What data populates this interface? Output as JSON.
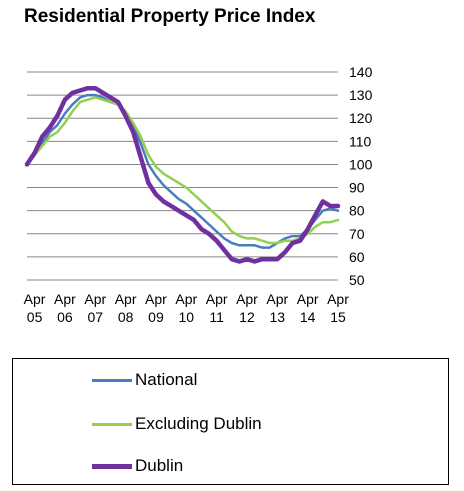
{
  "chart_data": {
    "type": "line",
    "title": "Residential Property Price Index",
    "xlabel": "",
    "ylabel": "",
    "x": [
      "2005-01",
      "2005-04",
      "2005-07",
      "2005-10",
      "2006-01",
      "2006-04",
      "2006-07",
      "2006-10",
      "2007-01",
      "2007-04",
      "2007-07",
      "2007-10",
      "2008-01",
      "2008-04",
      "2008-07",
      "2008-10",
      "2009-01",
      "2009-04",
      "2009-07",
      "2009-10",
      "2010-01",
      "2010-04",
      "2010-07",
      "2010-10",
      "2011-01",
      "2011-04",
      "2011-07",
      "2011-10",
      "2012-01",
      "2012-04",
      "2012-07",
      "2012-10",
      "2013-01",
      "2013-04",
      "2013-07",
      "2013-10",
      "2014-01",
      "2014-04",
      "2014-07",
      "2014-10",
      "2015-01",
      "2015-04"
    ],
    "x_tick_labels": [
      {
        "month": "Apr",
        "year": "05"
      },
      {
        "month": "Apr",
        "year": "06"
      },
      {
        "month": "Apr",
        "year": "07"
      },
      {
        "month": "Apr",
        "year": "08"
      },
      {
        "month": "Apr",
        "year": "09"
      },
      {
        "month": "Apr",
        "year": "10"
      },
      {
        "month": "Apr",
        "year": "11"
      },
      {
        "month": "Apr",
        "year": "12"
      },
      {
        "month": "Apr",
        "year": "13"
      },
      {
        "month": "Apr",
        "year": "14"
      },
      {
        "month": "Apr",
        "year": "15"
      }
    ],
    "y_ticks": [
      "50",
      "60",
      "70",
      "80",
      "90",
      "100",
      "110",
      "120",
      "130",
      "140"
    ],
    "ylim": [
      50,
      140
    ],
    "xlim": [
      "2005-01",
      "2015-04"
    ],
    "grid": "horizontal",
    "legend": "bottom",
    "series": [
      {
        "name": "National",
        "color": "#4a7ebb",
        "values": [
          100,
          104,
          109,
          114,
          117,
          122,
          126,
          129,
          130,
          130,
          129,
          127,
          126,
          123,
          117,
          109,
          100,
          95,
          91,
          88,
          85,
          83,
          80,
          77,
          74,
          71,
          68,
          66,
          65,
          65,
          65,
          64,
          64,
          66,
          68,
          69,
          69,
          72,
          76,
          80,
          81,
          80
        ]
      },
      {
        "name": "Excluding Dublin",
        "color": "#92d050",
        "values": [
          100,
          104,
          108,
          112,
          114,
          118,
          123,
          127,
          128,
          129,
          128,
          127,
          126,
          123,
          118,
          112,
          104,
          99,
          96,
          94,
          92,
          90,
          87,
          84,
          81,
          78,
          75,
          71,
          69,
          68,
          68,
          67,
          66,
          66,
          67,
          67,
          68,
          70,
          73,
          75,
          75,
          76
        ]
      },
      {
        "name": "Dublin",
        "color": "#7030a0",
        "values": [
          100,
          105,
          112,
          116,
          121,
          128,
          131,
          132,
          133,
          133,
          131,
          129,
          127,
          121,
          114,
          103,
          92,
          87,
          84,
          82,
          80,
          78,
          76,
          72,
          70,
          67,
          63,
          59,
          58,
          59,
          58,
          59,
          59,
          59,
          62,
          66,
          67,
          72,
          78,
          84,
          82,
          82
        ]
      }
    ]
  }
}
